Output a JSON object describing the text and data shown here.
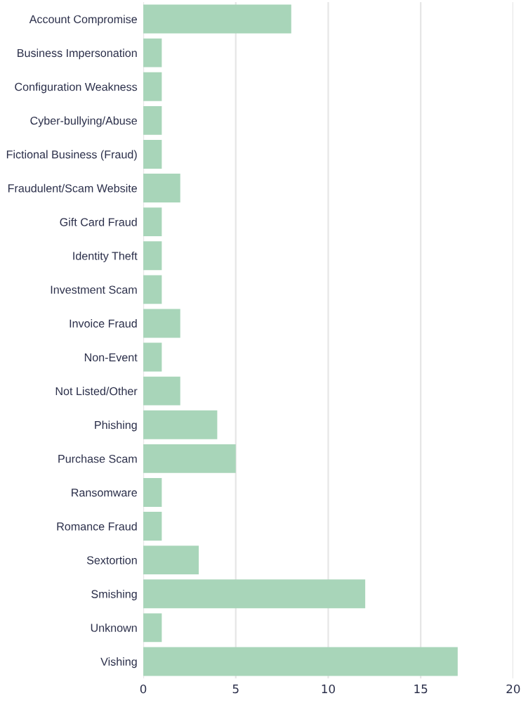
{
  "chart_data": {
    "type": "bar",
    "orientation": "horizontal",
    "categories": [
      "Account Compromise",
      "Business Impersonation",
      "Configuration Weakness",
      "Cyber-bullying/Abuse",
      "Fictional Business (Fraud)",
      "Fraudulent/Scam Website",
      "Gift Card Fraud",
      "Identity Theft",
      "Investment Scam",
      "Invoice Fraud",
      "Non-Event",
      "Not Listed/Other",
      "Phishing",
      "Purchase Scam",
      "Ransomware",
      "Romance Fraud",
      "Sextortion",
      "Smishing",
      "Unknown",
      "Vishing"
    ],
    "values": [
      8,
      1,
      1,
      1,
      1,
      2,
      1,
      1,
      1,
      2,
      1,
      2,
      4,
      5,
      1,
      1,
      3,
      12,
      1,
      17
    ],
    "color": "#a8d5b9",
    "xlim": [
      0,
      20
    ],
    "xticks": [
      0,
      5,
      10,
      15,
      20
    ],
    "grid": "x",
    "legend": false
  }
}
